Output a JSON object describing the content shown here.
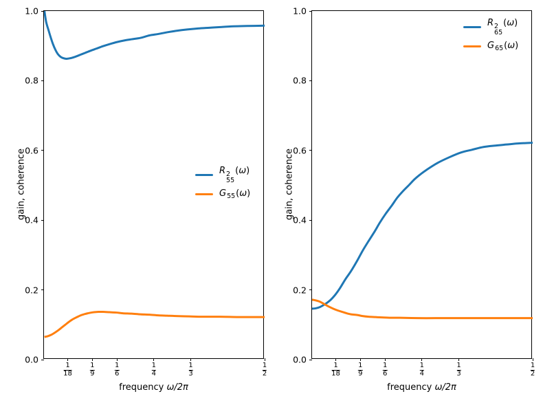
{
  "figure": {
    "background": "#ffffff",
    "colors": {
      "series1": "#1f77b4",
      "series2": "#ff7f0e"
    }
  },
  "chart_data": [
    {
      "type": "line",
      "title": "",
      "ylabel": "gain, coherence",
      "xlabel": {
        "prefix": "frequency ",
        "math": "ω/2π"
      },
      "xlim": [
        0.002,
        0.5
      ],
      "ylim": [
        0.0,
        1.0
      ],
      "grid": false,
      "x_ticks": [
        {
          "num": "1",
          "den": "18",
          "value": 0.055556
        },
        {
          "num": "1",
          "den": "9",
          "value": 0.111111
        },
        {
          "num": "1",
          "den": "6",
          "value": 0.166667
        },
        {
          "num": "1",
          "den": "4",
          "value": 0.25
        },
        {
          "num": "1",
          "den": "3",
          "value": 0.333333
        },
        {
          "num": "1",
          "den": "2",
          "value": 0.5
        }
      ],
      "y_ticks": [
        {
          "label": "0.0",
          "value": 0.0
        },
        {
          "label": "0.2",
          "value": 0.2
        },
        {
          "label": "0.4",
          "value": 0.4
        },
        {
          "label": "0.6",
          "value": 0.6
        },
        {
          "label": "0.8",
          "value": 0.8
        },
        {
          "label": "1.0",
          "value": 1.0
        }
      ],
      "legend": {
        "position": "center-right",
        "frame": false,
        "entries": [
          {
            "name": "R2-55",
            "base": "R",
            "sup": "2",
            "sub": "55",
            "open": "(",
            "var": "ω",
            "close": ")",
            "color": "#1f77b4"
          },
          {
            "name": "G-55",
            "base": "G",
            "sup": "",
            "sub": "55",
            "open": "(",
            "var": "ω",
            "close": ")",
            "color": "#ff7f0e"
          }
        ]
      },
      "series": [
        {
          "name": "R2-55",
          "color": "#1f77b4",
          "x": [
            0.003,
            0.007,
            0.012,
            0.017,
            0.022,
            0.028,
            0.033,
            0.039,
            0.045,
            0.052,
            0.059,
            0.066,
            0.075,
            0.085,
            0.095,
            0.107,
            0.12,
            0.135,
            0.15,
            0.167,
            0.185,
            0.2,
            0.22,
            0.24,
            0.26,
            0.28,
            0.3,
            0.325,
            0.35,
            0.375,
            0.4,
            0.43,
            0.46,
            0.5
          ],
          "y": [
            1.0,
            0.968,
            0.946,
            0.925,
            0.906,
            0.888,
            0.877,
            0.869,
            0.865,
            0.863,
            0.864,
            0.866,
            0.87,
            0.875,
            0.88,
            0.886,
            0.892,
            0.899,
            0.905,
            0.911,
            0.916,
            0.919,
            0.923,
            0.93,
            0.934,
            0.939,
            0.943,
            0.947,
            0.95,
            0.952,
            0.954,
            0.956,
            0.957,
            0.958
          ]
        },
        {
          "name": "G-55",
          "color": "#ff7f0e",
          "x": [
            0.003,
            0.01,
            0.018,
            0.026,
            0.034,
            0.042,
            0.05,
            0.058,
            0.066,
            0.075,
            0.085,
            0.095,
            0.105,
            0.115,
            0.125,
            0.135,
            0.15,
            0.165,
            0.18,
            0.2,
            0.22,
            0.24,
            0.26,
            0.28,
            0.3,
            0.33,
            0.36,
            0.4,
            0.44,
            0.47,
            0.5
          ],
          "y": [
            0.065,
            0.067,
            0.071,
            0.077,
            0.084,
            0.092,
            0.1,
            0.108,
            0.115,
            0.121,
            0.127,
            0.131,
            0.134,
            0.136,
            0.137,
            0.137,
            0.136,
            0.135,
            0.133,
            0.132,
            0.13,
            0.129,
            0.127,
            0.126,
            0.125,
            0.124,
            0.123,
            0.123,
            0.122,
            0.122,
            0.122
          ]
        }
      ]
    },
    {
      "type": "line",
      "title": "",
      "ylabel": "gain, coherence",
      "xlabel": {
        "prefix": "frequency ",
        "math": "ω/2π"
      },
      "xlim": [
        0.002,
        0.5
      ],
      "ylim": [
        0.0,
        1.0
      ],
      "grid": false,
      "x_ticks": [
        {
          "num": "1",
          "den": "18",
          "value": 0.055556
        },
        {
          "num": "1",
          "den": "9",
          "value": 0.111111
        },
        {
          "num": "1",
          "den": "6",
          "value": 0.166667
        },
        {
          "num": "1",
          "den": "4",
          "value": 0.25
        },
        {
          "num": "1",
          "den": "3",
          "value": 0.333333
        },
        {
          "num": "1",
          "den": "2",
          "value": 0.5
        }
      ],
      "y_ticks": [
        {
          "label": "0.0",
          "value": 0.0
        },
        {
          "label": "0.2",
          "value": 0.2
        },
        {
          "label": "0.4",
          "value": 0.4
        },
        {
          "label": "0.6",
          "value": 0.6
        },
        {
          "label": "0.8",
          "value": 0.8
        },
        {
          "label": "1.0",
          "value": 1.0
        }
      ],
      "legend": {
        "position": "upper-right",
        "frame": false,
        "entries": [
          {
            "name": "R2-65",
            "base": "R",
            "sup": "2",
            "sub": "65",
            "open": "(",
            "var": "ω",
            "close": ")",
            "color": "#1f77b4"
          },
          {
            "name": "G-65",
            "base": "G",
            "sup": "",
            "sub": "65",
            "open": "(",
            "var": "ω",
            "close": ")",
            "color": "#ff7f0e"
          }
        ]
      },
      "series": [
        {
          "name": "R2-65",
          "color": "#1f77b4",
          "x": [
            0.002,
            0.01,
            0.02,
            0.03,
            0.038,
            0.046,
            0.055,
            0.065,
            0.077,
            0.09,
            0.104,
            0.116,
            0.129,
            0.143,
            0.155,
            0.168,
            0.182,
            0.194,
            0.207,
            0.221,
            0.233,
            0.246,
            0.26,
            0.285,
            0.311,
            0.338,
            0.363,
            0.389,
            0.416,
            0.441,
            0.467,
            0.5
          ],
          "y": [
            0.146,
            0.147,
            0.151,
            0.158,
            0.165,
            0.174,
            0.187,
            0.205,
            0.23,
            0.254,
            0.284,
            0.312,
            0.339,
            0.367,
            0.393,
            0.418,
            0.442,
            0.464,
            0.483,
            0.501,
            0.517,
            0.531,
            0.544,
            0.564,
            0.58,
            0.594,
            0.602,
            0.61,
            0.614,
            0.617,
            0.62,
            0.622
          ]
        },
        {
          "name": "G-65",
          "color": "#ff7f0e",
          "x": [
            0.002,
            0.01,
            0.02,
            0.03,
            0.04,
            0.05,
            0.06,
            0.07,
            0.08,
            0.09,
            0.104,
            0.116,
            0.13,
            0.145,
            0.16,
            0.18,
            0.2,
            0.24,
            0.28,
            0.32,
            0.38,
            0.44,
            0.5
          ],
          "y": [
            0.172,
            0.17,
            0.166,
            0.159,
            0.152,
            0.146,
            0.141,
            0.137,
            0.133,
            0.13,
            0.128,
            0.125,
            0.123,
            0.122,
            0.121,
            0.12,
            0.12,
            0.119,
            0.119,
            0.119,
            0.119,
            0.119,
            0.119
          ]
        }
      ]
    }
  ]
}
